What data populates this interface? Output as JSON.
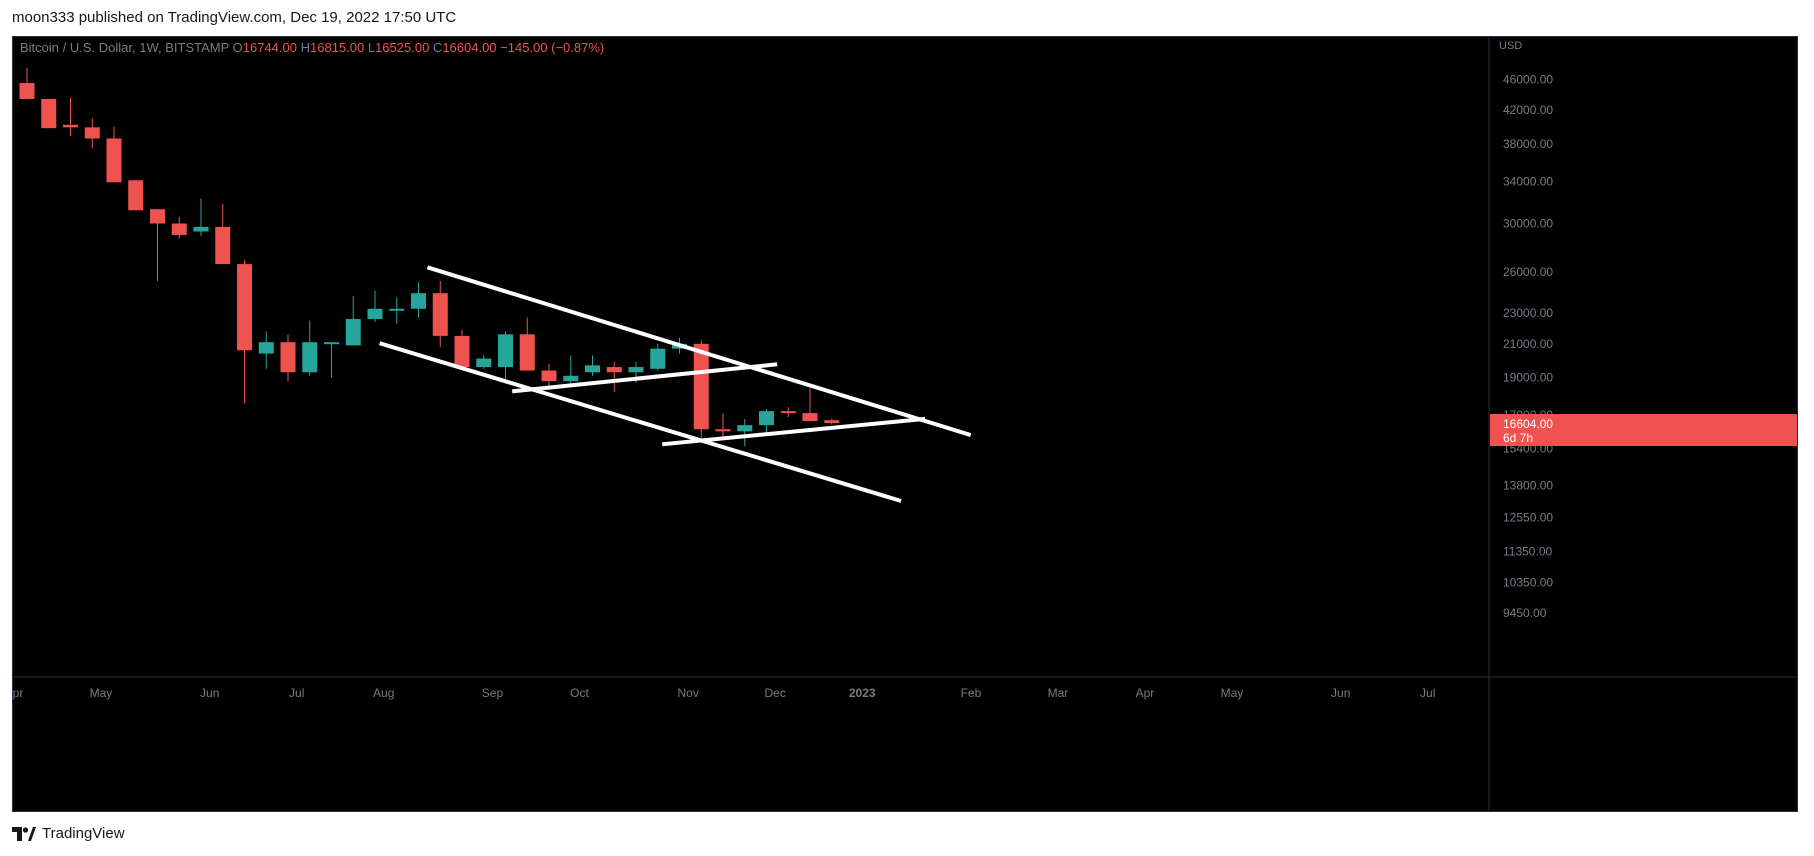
{
  "header": {
    "publish_text": "moon333 published on TradingView.com, Dec 19, 2022 17:50 UTC"
  },
  "footer": {
    "brand": "TradingView"
  },
  "colors": {
    "background": "#000000",
    "up": "#26a69a",
    "down": "#ef5350",
    "trendline": "#ffffff",
    "axis_text": "#787b86",
    "grid_border": "#2a2e39"
  },
  "chart_data": {
    "type": "candlestick",
    "symbol_line": {
      "name": "Bitcoin / U.S. Dollar, 1W, BITSTAMP",
      "open_label": "O",
      "open": "16744.00",
      "high_label": "H",
      "high": "16815.00",
      "low_label": "L",
      "low": "16525.00",
      "close_label": "C",
      "close": "16604.00",
      "change": "−145.00 (−0.87%)"
    },
    "currency": "USD",
    "price_scale": "log",
    "ylim": [
      8700,
      48000
    ],
    "y_ticks": [
      "46000.00",
      "42000.00",
      "38000.00",
      "34000.00",
      "30000.00",
      "26000.00",
      "23000.00",
      "21000.00",
      "19000.00",
      "17000.00",
      "15400.00",
      "13800.00",
      "12550.00",
      "11350.00",
      "10350.00",
      "9450.00"
    ],
    "x_ticks": [
      {
        "label": "Apr",
        "bar": -0.6
      },
      {
        "label": "May",
        "bar": 3.4
      },
      {
        "label": "Jun",
        "bar": 8.4
      },
      {
        "label": "Jul",
        "bar": 12.4
      },
      {
        "label": "Aug",
        "bar": 16.4
      },
      {
        "label": "Sep",
        "bar": 21.4
      },
      {
        "label": "Oct",
        "bar": 25.4
      },
      {
        "label": "Nov",
        "bar": 30.4
      },
      {
        "label": "Dec",
        "bar": 34.4
      },
      {
        "label": "2023",
        "bar": 38.4,
        "bold": true
      },
      {
        "label": "Feb",
        "bar": 43.4
      },
      {
        "label": "Mar",
        "bar": 47.4
      },
      {
        "label": "Apr",
        "bar": 51.4
      },
      {
        "label": "May",
        "bar": 55.4
      },
      {
        "label": "Jun",
        "bar": 60.4
      },
      {
        "label": "Jul",
        "bar": 64.4
      }
    ],
    "candles": [
      {
        "o": 45500,
        "h": 47600,
        "l": 43400,
        "c": 43400
      },
      {
        "o": 43400,
        "h": 43400,
        "l": 39800,
        "c": 39800
      },
      {
        "o": 40200,
        "h": 43600,
        "l": 38900,
        "c": 39900
      },
      {
        "o": 39900,
        "h": 41000,
        "l": 37500,
        "c": 38600
      },
      {
        "o": 38600,
        "h": 40000,
        "l": 33900,
        "c": 33900
      },
      {
        "o": 34100,
        "h": 34100,
        "l": 31200,
        "c": 31200
      },
      {
        "o": 31300,
        "h": 31300,
        "l": 25300,
        "c": 30000
      },
      {
        "o": 30000,
        "h": 30600,
        "l": 28700,
        "c": 29000
      },
      {
        "o": 29300,
        "h": 32300,
        "l": 28900,
        "c": 29700
      },
      {
        "o": 29700,
        "h": 31800,
        "l": 26600,
        "c": 26600
      },
      {
        "o": 26600,
        "h": 26900,
        "l": 17600,
        "c": 20600
      },
      {
        "o": 20400,
        "h": 21800,
        "l": 19500,
        "c": 21100
      },
      {
        "o": 21100,
        "h": 21600,
        "l": 18800,
        "c": 19300
      },
      {
        "o": 19300,
        "h": 22500,
        "l": 19100,
        "c": 21100
      },
      {
        "o": 21100,
        "h": 21100,
        "l": 19000,
        "c": 21100
      },
      {
        "o": 20900,
        "h": 24200,
        "l": 20900,
        "c": 22600
      },
      {
        "o": 22600,
        "h": 24600,
        "l": 22400,
        "c": 23300
      },
      {
        "o": 23300,
        "h": 24100,
        "l": 22300,
        "c": 23300
      },
      {
        "o": 23300,
        "h": 25200,
        "l": 22700,
        "c": 24400
      },
      {
        "o": 24400,
        "h": 25300,
        "l": 20800,
        "c": 21500
      },
      {
        "o": 21500,
        "h": 21900,
        "l": 19600,
        "c": 19600
      },
      {
        "o": 19600,
        "h": 20300,
        "l": 19500,
        "c": 20100
      },
      {
        "o": 19600,
        "h": 21800,
        "l": 18700,
        "c": 21600
      },
      {
        "o": 21600,
        "h": 22700,
        "l": 19400,
        "c": 19400
      },
      {
        "o": 19400,
        "h": 19800,
        "l": 18400,
        "c": 18800
      },
      {
        "o": 18800,
        "h": 20300,
        "l": 18500,
        "c": 19100
      },
      {
        "o": 19300,
        "h": 20300,
        "l": 19100,
        "c": 19700
      },
      {
        "o": 19600,
        "h": 19900,
        "l": 18200,
        "c": 19300
      },
      {
        "o": 19300,
        "h": 19900,
        "l": 18700,
        "c": 19600
      },
      {
        "o": 19500,
        "h": 21000,
        "l": 19400,
        "c": 20700
      },
      {
        "o": 20700,
        "h": 21400,
        "l": 20400,
        "c": 21000
      },
      {
        "o": 21000,
        "h": 21200,
        "l": 15700,
        "c": 16300
      },
      {
        "o": 16300,
        "h": 17100,
        "l": 15900,
        "c": 16200
      },
      {
        "o": 16200,
        "h": 16800,
        "l": 15500,
        "c": 16500
      },
      {
        "o": 16500,
        "h": 17300,
        "l": 16100,
        "c": 17200
      },
      {
        "o": 17200,
        "h": 17400,
        "l": 16900,
        "c": 17100
      },
      {
        "o": 17100,
        "h": 18400,
        "l": 16700,
        "c": 16700
      },
      {
        "o": 16744,
        "h": 16815,
        "l": 16525,
        "c": 16604
      }
    ],
    "last_price": {
      "value": 16604.0,
      "label": "16604.00",
      "countdown": "6d 7h"
    },
    "trendlines": [
      {
        "name": "channel-upper",
        "from": {
          "bar": 18.5,
          "price": 26300
        },
        "to": {
          "bar": 43.3,
          "price": 16050
        }
      },
      {
        "name": "channel-lower",
        "from": {
          "bar": 16.3,
          "price": 21000
        },
        "to": {
          "bar": 40.1,
          "price": 13200
        }
      },
      {
        "name": "flag-lower-1",
        "from": {
          "bar": 22.4,
          "price": 18250
        },
        "to": {
          "bar": 34.4,
          "price": 19750
        }
      },
      {
        "name": "flag-lower-2",
        "from": {
          "bar": 29.3,
          "price": 15600
        },
        "to": {
          "bar": 41.2,
          "price": 16800
        }
      }
    ]
  }
}
